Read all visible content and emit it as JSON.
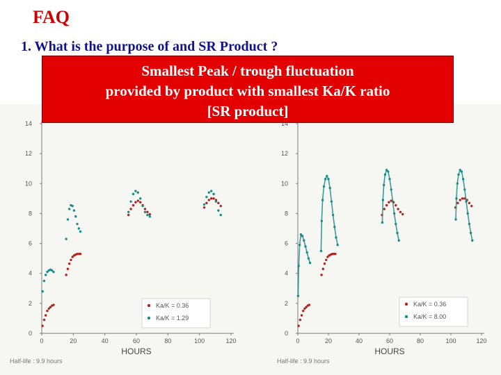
{
  "slide": {
    "title": "FAQ",
    "question": "1.  What is the purpose of and SR Product ?",
    "answer_lines": [
      "Smallest Peak / trough fluctuation",
      "provided by product with smallest Ka/K ratio",
      "[SR product]"
    ]
  },
  "colors": {
    "title": "#cc0000",
    "question": "#14148a",
    "answer_bg": "#e30000",
    "series_red": "#b2231f",
    "series_teal": "#1a8c88"
  },
  "chart_data": [
    {
      "type": "scatter",
      "xlabel": "HOURS",
      "xlim": [
        0,
        120
      ],
      "ylim": [
        0,
        14
      ],
      "xticks": [
        "0",
        "20",
        "40",
        "60",
        "80",
        "100",
        "120"
      ],
      "yticks": [
        "0",
        "2",
        "4",
        "6",
        "8",
        "10",
        "12",
        "14"
      ],
      "footnote": "Half-life : 9.9 hours",
      "legend_position": "bottom-right",
      "series": [
        {
          "name": "Ka/K = 0.36",
          "color": "#b2231f",
          "x": [
            0.5,
            1.5,
            2.5,
            3.5,
            4.5,
            5.5,
            6.5,
            7.5,
            15.5,
            16.5,
            17.5,
            18.5,
            19.5,
            20.5,
            21.5,
            22.5,
            23.5,
            24.5,
            55,
            56.5,
            58,
            59.5,
            61,
            62.5,
            64,
            65.5,
            67,
            68.5,
            103,
            104.5,
            106,
            107.5,
            109,
            110.5,
            112,
            113.5
          ],
          "y": [
            0.5,
            0.9,
            1.2,
            1.5,
            1.65,
            1.75,
            1.85,
            1.9,
            3.9,
            4.3,
            4.65,
            4.9,
            5.1,
            5.2,
            5.25,
            5.3,
            5.3,
            5.3,
            7.9,
            8.3,
            8.55,
            8.75,
            8.85,
            8.75,
            8.55,
            8.3,
            8.1,
            7.95,
            8.4,
            8.7,
            8.9,
            9.0,
            9.0,
            8.9,
            8.7,
            8.5
          ]
        },
        {
          "name": "Ka/K = 1.29",
          "color": "#1a8c88",
          "x": [
            0.5,
            1.5,
            2.5,
            3.5,
            4.5,
            5.5,
            6.5,
            7.5,
            15.5,
            16.5,
            17.5,
            18.5,
            19.5,
            20.5,
            21.5,
            22.5,
            23.5,
            24.5,
            55,
            56.5,
            58,
            59.5,
            61,
            62.5,
            64,
            65.5,
            67,
            68.5,
            103,
            104.5,
            106,
            107.5,
            109,
            110.5,
            112,
            113.5
          ],
          "y": [
            2.8,
            3.5,
            3.9,
            4.1,
            4.2,
            4.25,
            4.2,
            4.1,
            6.3,
            7.6,
            8.3,
            8.55,
            8.5,
            8.2,
            7.8,
            7.3,
            7.0,
            6.8,
            8.1,
            8.8,
            9.3,
            9.5,
            9.4,
            9.0,
            8.5,
            8.1,
            7.9,
            7.8,
            8.6,
            9.1,
            9.4,
            9.5,
            9.3,
            8.8,
            8.2,
            7.9
          ]
        }
      ]
    },
    {
      "type": "scatter",
      "xlabel": "HOURS",
      "xlim": [
        0,
        120
      ],
      "ylim": [
        0,
        14
      ],
      "xticks": [
        "0",
        "20",
        "40",
        "60",
        "80",
        "100",
        "120"
      ],
      "yticks": [
        "0",
        "2",
        "4",
        "6",
        "8",
        "10",
        "12",
        "14"
      ],
      "footnote": "Half-life : 9.9 hours",
      "legend_position": "bottom-right",
      "series": [
        {
          "name": "Ka/K = 0.36",
          "color": "#b2231f",
          "x": [
            0.5,
            1.5,
            2.5,
            3.5,
            4.5,
            5.5,
            6.5,
            7.5,
            15.5,
            16.5,
            17.5,
            18.5,
            19.5,
            20.5,
            21.5,
            22.5,
            23.5,
            24.5,
            55,
            56.5,
            58,
            59.5,
            61,
            62.5,
            64,
            65.5,
            67,
            68.5,
            103,
            104.5,
            106,
            107.5,
            109,
            110.5,
            112,
            113.5
          ],
          "y": [
            0.5,
            0.9,
            1.2,
            1.5,
            1.65,
            1.75,
            1.85,
            1.9,
            3.9,
            4.3,
            4.65,
            4.9,
            5.1,
            5.2,
            5.25,
            5.3,
            5.3,
            5.3,
            7.9,
            8.3,
            8.55,
            8.75,
            8.85,
            8.75,
            8.55,
            8.3,
            8.1,
            7.95,
            8.4,
            8.7,
            8.9,
            9.0,
            9.0,
            8.9,
            8.7,
            8.5
          ]
        },
        {
          "name": "Ka/K = 8.00",
          "color": "#1a8c88",
          "x": [
            0.2,
            0.6,
            1.2,
            2,
            3,
            4,
            5,
            6,
            7,
            8,
            15.2,
            15.6,
            16.2,
            17,
            18,
            19,
            20,
            21,
            22,
            23,
            24,
            25,
            26,
            55.2,
            55.6,
            56.2,
            57,
            58,
            59,
            60,
            61,
            62,
            63,
            64,
            65,
            66,
            103.2,
            103.6,
            104.2,
            105,
            106,
            107,
            108,
            109,
            110,
            111,
            112,
            113,
            114
          ],
          "y": [
            2.5,
            4.5,
            5.9,
            6.6,
            6.5,
            6.2,
            5.8,
            5.4,
            5.0,
            4.7,
            5.5,
            7.5,
            8.9,
            9.8,
            10.3,
            10.5,
            10.3,
            9.7,
            8.8,
            7.9,
            7.1,
            6.4,
            5.9,
            7.4,
            8.9,
            9.9,
            10.6,
            10.9,
            10.8,
            10.3,
            9.6,
            8.8,
            8.0,
            7.3,
            6.7,
            6.2,
            7.6,
            9.0,
            10.0,
            10.6,
            10.9,
            10.8,
            10.3,
            9.6,
            8.8,
            8.0,
            7.3,
            6.7,
            6.2
          ]
        }
      ]
    }
  ]
}
